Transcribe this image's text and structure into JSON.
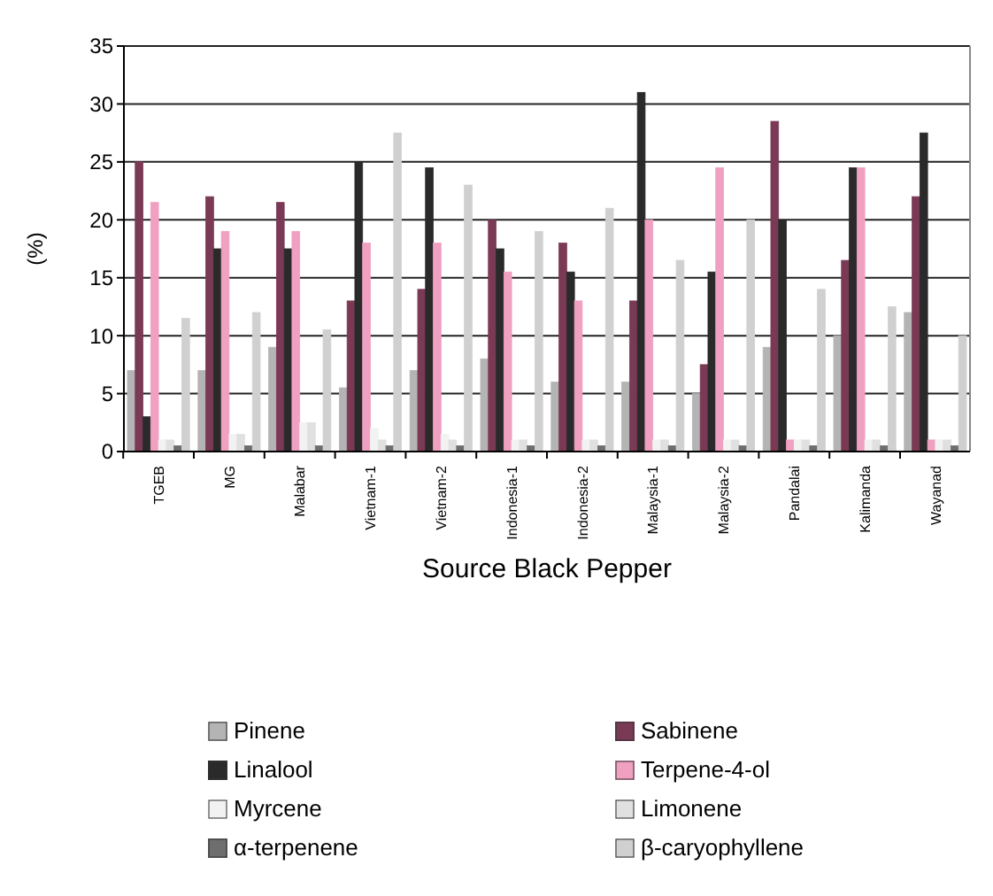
{
  "chart_data": {
    "type": "bar",
    "xlabel": "Source Black Pepper",
    "ylabel": "(%)",
    "categories": [
      "TGEB",
      "MG",
      "Malabar",
      "Vietnam-1",
      "Vietnam-2",
      "Indonesia-1",
      "Indonesia-2",
      "Malaysia-1",
      "Malaysia-2",
      "Pandalai",
      "Kalimanda",
      "Wayanad"
    ],
    "series": [
      {
        "name": "Pinene",
        "color": "#b4b4b4",
        "values": [
          7,
          7,
          9,
          5.5,
          7,
          8,
          6,
          6,
          5,
          9,
          10,
          12
        ]
      },
      {
        "name": "Sabinene",
        "color": "#7a3a55",
        "values": [
          25,
          22,
          21.5,
          13,
          14,
          20,
          18,
          13,
          7.5,
          28.5,
          16.5,
          22
        ]
      },
      {
        "name": "Linalool",
        "color": "#2a2a2a",
        "values": [
          3,
          17.5,
          17.5,
          25,
          24.5,
          17.5,
          15.5,
          31,
          15.5,
          20,
          24.5,
          27.5
        ]
      },
      {
        "name": "Terpene-4-ol",
        "color": "#f0a0c0",
        "values": [
          21.5,
          19,
          19,
          18,
          18,
          15.5,
          13,
          20,
          24.5,
          1,
          24.5,
          1
        ]
      },
      {
        "name": "Myrcene",
        "color": "#f2f2f2",
        "values": [
          1,
          1.5,
          2.5,
          2,
          1.5,
          1,
          1,
          1,
          1,
          1,
          1,
          1
        ]
      },
      {
        "name": "Limonene",
        "color": "#e0e0e0",
        "values": [
          1,
          1.5,
          2.5,
          1,
          1,
          1,
          1,
          1,
          1,
          1,
          1,
          1
        ]
      },
      {
        "name": "α-terpenene",
        "color": "#6e6e6e",
        "values": [
          0.5,
          0.5,
          0.5,
          0.5,
          0.5,
          0.5,
          0.5,
          0.5,
          0.5,
          0.5,
          0.5,
          0.5
        ]
      },
      {
        "name": "β-caryophyllene",
        "color": "#d0d0d0",
        "values": [
          11.5,
          12,
          10.5,
          27.5,
          23,
          19,
          21,
          16.5,
          20,
          14,
          12.5,
          10
        ]
      }
    ],
    "ylim": [
      0,
      35
    ],
    "yticks": [
      0,
      5,
      10,
      15,
      20,
      25,
      30,
      35
    ],
    "grid": "y",
    "legend": "bottom"
  }
}
